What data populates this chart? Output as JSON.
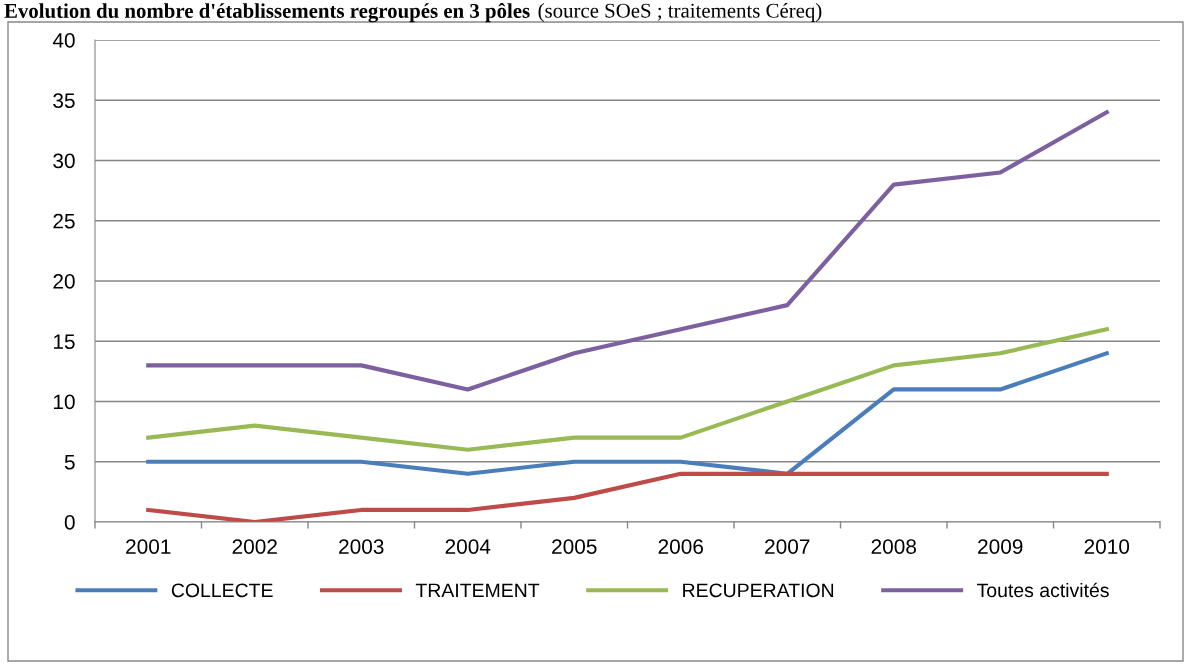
{
  "chart_data": {
    "type": "line",
    "title": "Evolution du nombre d'établissements regroupés en 3 pôles",
    "subtitle": "(source SOeS ; traitements Céreq)",
    "categories": [
      "2001",
      "2002",
      "2003",
      "2004",
      "2005",
      "2006",
      "2007",
      "2008",
      "2009",
      "2010"
    ],
    "series": [
      {
        "name": "COLLECTE",
        "color": "#4a7ebb",
        "values": [
          5,
          5,
          5,
          4,
          5,
          5,
          4,
          11,
          11,
          14
        ]
      },
      {
        "name": "TRAITEMENT",
        "color": "#be4b48",
        "values": [
          1,
          0,
          1,
          1,
          2,
          4,
          4,
          4,
          4,
          4
        ]
      },
      {
        "name": "RECUPERATION",
        "color": "#98b954",
        "values": [
          7,
          8,
          7,
          6,
          7,
          7,
          10,
          13,
          14,
          16
        ]
      },
      {
        "name": "Toutes activités",
        "color": "#7d60a0",
        "values": [
          13,
          13,
          13,
          11,
          14,
          16,
          18,
          28,
          29,
          34
        ]
      }
    ],
    "ylim": [
      0,
      40
    ],
    "yticks": [
      0,
      5,
      10,
      15,
      20,
      25,
      30,
      35,
      40
    ],
    "grid": "y",
    "legend": "bottom",
    "marker": "none",
    "line_style": "solid"
  }
}
